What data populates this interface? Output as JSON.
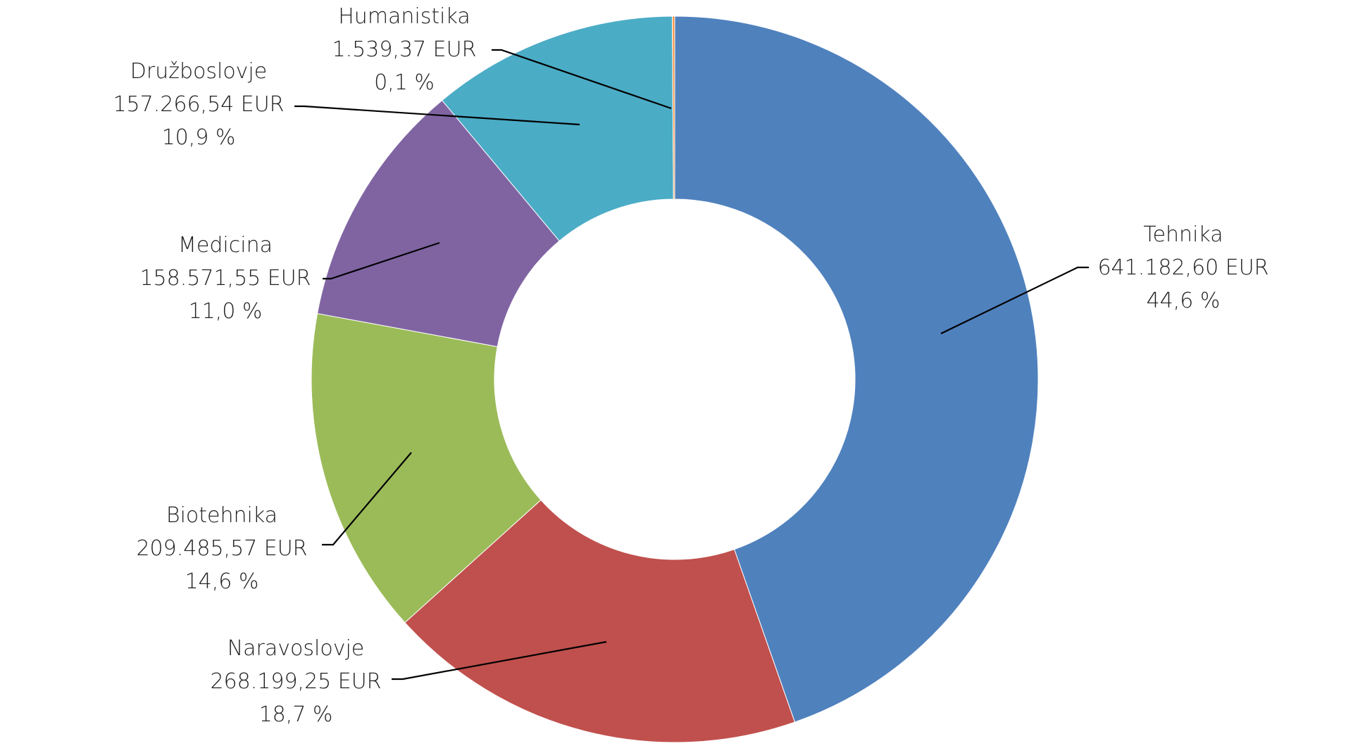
{
  "chart_data": {
    "type": "pie",
    "variant": "donut",
    "title": "",
    "legend": "none",
    "slices": [
      {
        "label": "Tehnika",
        "amount": "641.182,60 EUR",
        "percent_label": "44,6 %",
        "value": 641182.6,
        "color": "#4F81BD"
      },
      {
        "label": "Naravoslovje",
        "amount": "268.199,25 EUR",
        "percent_label": "18,7 %",
        "value": 268199.25,
        "color": "#C0504D"
      },
      {
        "label": "Biotehnika",
        "amount": "209.485,57 EUR",
        "percent_label": "14,6 %",
        "value": 209485.57,
        "color": "#9BBB59"
      },
      {
        "label": "Medicina",
        "amount": "158.571,55 EUR",
        "percent_label": "11,0 %",
        "value": 158571.55,
        "color": "#8064A2"
      },
      {
        "label": "Družboslovje",
        "amount": "157.266,54 EUR",
        "percent_label": "10,9 %",
        "value": 157266.54,
        "color": "#4BACC6"
      },
      {
        "label": "Humanistika",
        "amount": "1.539,37 EUR",
        "percent_label": "0,1 %",
        "value": 1539.37,
        "color": "#F79646"
      }
    ]
  }
}
